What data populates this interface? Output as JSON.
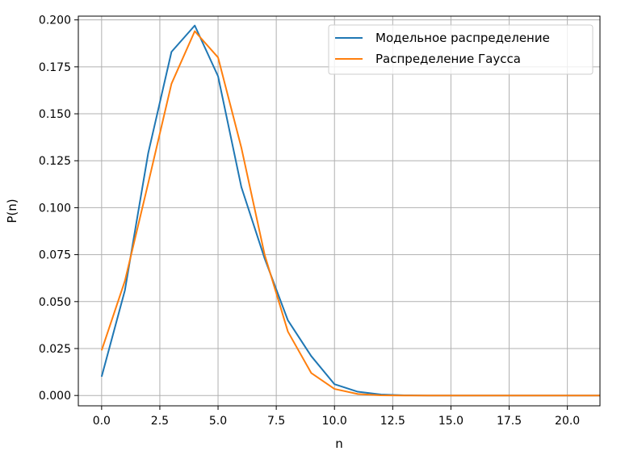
{
  "chart_data": {
    "type": "line",
    "title": "",
    "xlabel": "n",
    "ylabel": "P(n)",
    "xlim": [
      -1.0,
      21.4
    ],
    "ylim": [
      -0.0055,
      0.202
    ],
    "grid": true,
    "legend_position": "top-right",
    "x_ticks": [
      0.0,
      2.5,
      5.0,
      7.5,
      10.0,
      12.5,
      15.0,
      17.5,
      20.0
    ],
    "x_tick_labels": [
      "0.0",
      "2.5",
      "5.0",
      "7.5",
      "10.0",
      "12.5",
      "15.0",
      "17.5",
      "20.0"
    ],
    "y_ticks": [
      0.0,
      0.025,
      0.05,
      0.075,
      0.1,
      0.125,
      0.15,
      0.175,
      0.2
    ],
    "y_tick_labels": [
      "0.000",
      "0.025",
      "0.050",
      "0.075",
      "0.100",
      "0.125",
      "0.150",
      "0.175",
      "0.200"
    ],
    "x": [
      0,
      1,
      2,
      3,
      4,
      5,
      6,
      7,
      8,
      9,
      10,
      11,
      12,
      13,
      14,
      15,
      16,
      17,
      18,
      19,
      20,
      21,
      22
    ],
    "series": [
      {
        "name": "Модельное распределение",
        "color": "#1f77b4",
        "values": [
          0.01,
          0.056,
          0.129,
          0.183,
          0.197,
          0.17,
          0.111,
          0.073,
          0.04,
          0.021,
          0.006,
          0.002,
          0.0005,
          0.0001,
          0.0,
          0.0,
          0.0,
          0.0,
          0.0,
          0.0,
          0.0,
          0.0,
          0.0
        ]
      },
      {
        "name": "Распределение Гаусса",
        "color": "#ff7f0e",
        "values": [
          0.024,
          0.061,
          0.113,
          0.166,
          0.194,
          0.18,
          0.132,
          0.075,
          0.034,
          0.012,
          0.0035,
          0.0008,
          0.0001,
          0.0,
          0.0,
          0.0,
          0.0,
          0.0,
          0.0,
          0.0,
          0.0,
          0.0,
          0.0
        ]
      }
    ]
  }
}
